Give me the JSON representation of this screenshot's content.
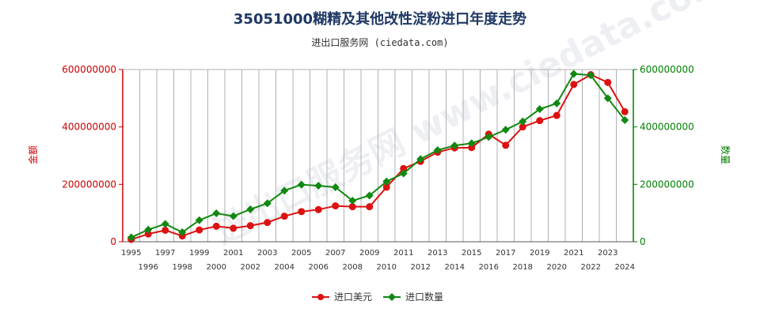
{
  "header": {
    "title": "35051000糊精及其他改性淀粉进口年度走势",
    "subtitle": "进出口服务网 (ciedata.com)"
  },
  "watermark": "进出口服务网 www.ciedata.com",
  "colors": {
    "amount": "#dd1111",
    "quantity": "#118811",
    "left_axis": "#cc0000",
    "right_axis": "#008000"
  },
  "chart_data": {
    "type": "line",
    "title": "35051000糊精及其他改性淀粉进口年度走势",
    "x": [
      1995,
      1996,
      1997,
      1998,
      1999,
      2000,
      2001,
      2002,
      2003,
      2004,
      2005,
      2006,
      2007,
      2008,
      2009,
      2010,
      2011,
      2012,
      2013,
      2014,
      2015,
      2016,
      2017,
      2018,
      2019,
      2020,
      2021,
      2022,
      2023,
      2024
    ],
    "x_tick_labels": [
      "1995",
      "1996",
      "1997",
      "1998",
      "1999",
      "2000",
      "2001",
      "2002",
      "2003",
      "2004",
      "2005",
      "2006",
      "2007",
      "2008",
      "2009",
      "2010",
      "2011",
      "2012",
      "2013",
      "2014",
      "2015",
      "2016",
      "2017",
      "2018",
      "2019",
      "2020",
      "2021",
      "2022",
      "2023",
      "2024"
    ],
    "ylabel": "金额",
    "y2label": "数量",
    "ylim": [
      0,
      600000000
    ],
    "y2lim": [
      0,
      600000000
    ],
    "y_ticks": [
      "0",
      "200000000",
      "400000000",
      "600000000"
    ],
    "y2_ticks": [
      "0",
      "200000000",
      "400000000",
      "600000000"
    ],
    "grid": true,
    "legend": "bottom",
    "series": [
      {
        "name": "进口美元",
        "axis": "left",
        "values": [
          8000000,
          27000000,
          40000000,
          20000000,
          41000000,
          54000000,
          47000000,
          56000000,
          67000000,
          89000000,
          105000000,
          112000000,
          125000000,
          122000000,
          122000000,
          190000000,
          255000000,
          280000000,
          312000000,
          327000000,
          328000000,
          375000000,
          336000000,
          400000000,
          422000000,
          440000000,
          548000000,
          582000000,
          555000000,
          453000000
        ]
      },
      {
        "name": "进口数量",
        "axis": "right",
        "values": [
          15000000,
          42000000,
          62000000,
          33000000,
          75000000,
          99000000,
          89000000,
          113000000,
          134000000,
          178000000,
          199000000,
          195000000,
          190000000,
          143000000,
          161000000,
          210000000,
          238000000,
          288000000,
          319000000,
          335000000,
          343000000,
          365000000,
          390000000,
          419000000,
          462000000,
          482000000,
          585000000,
          580000000,
          500000000,
          424000000
        ]
      }
    ]
  }
}
